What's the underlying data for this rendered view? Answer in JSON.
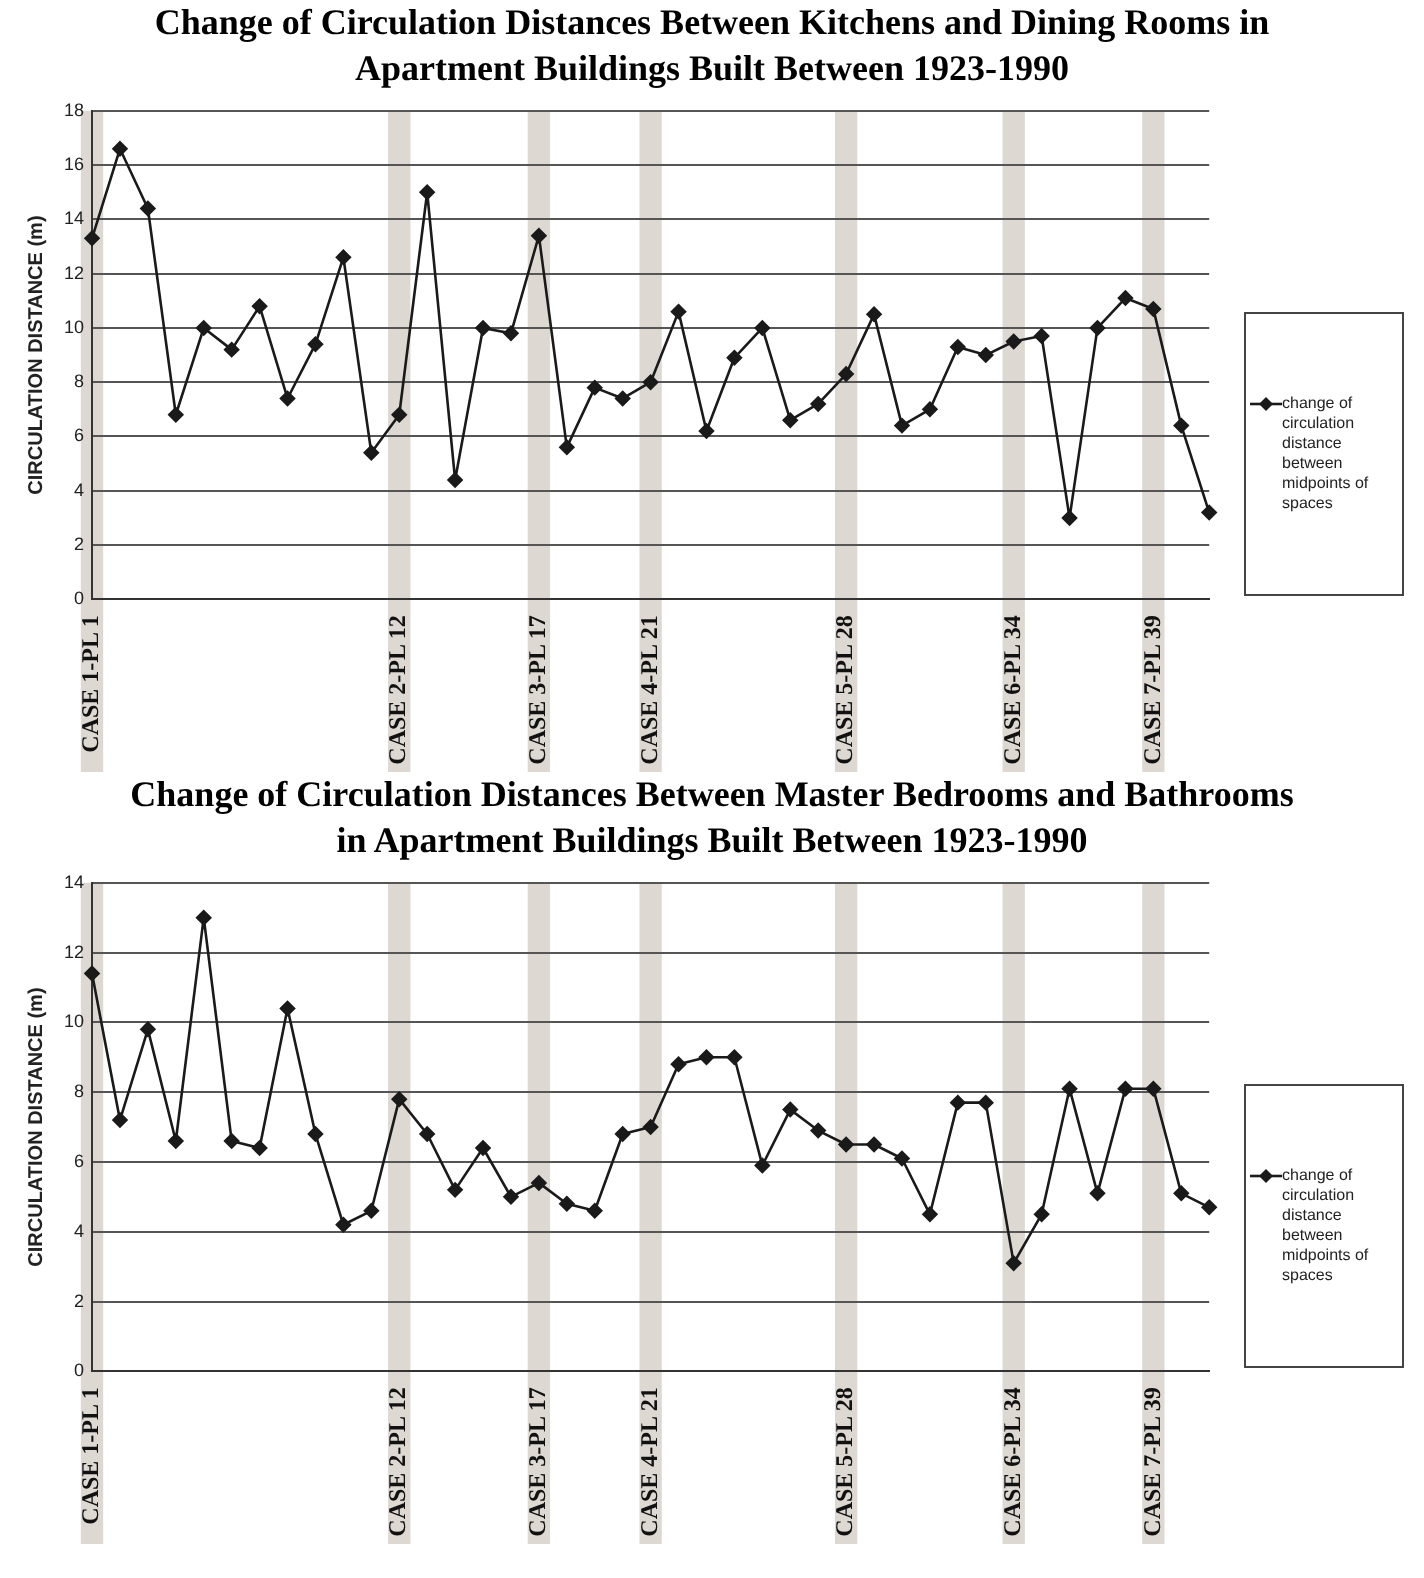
{
  "chart_data": [
    {
      "type": "line",
      "title": "Change of Circulation Distances Between Kitchens and Dining Rooms in Apartment Buildings Built Between 1923-1990",
      "ylabel": "CIRCULATION DISTANCE (m)",
      "categories": [
        "CASE 1-PL 1",
        null,
        null,
        null,
        null,
        null,
        null,
        null,
        null,
        null,
        null,
        "CASE 2-PL 12",
        null,
        null,
        null,
        null,
        "CASE 3-PL 17",
        null,
        null,
        null,
        "CASE 4-PL 21",
        null,
        null,
        null,
        null,
        null,
        null,
        "CASE 5-PL 28",
        null,
        null,
        null,
        null,
        null,
        "CASE 6-PL 34",
        null,
        null,
        null,
        null,
        "CASE 7-PL 39",
        null,
        null
      ],
      "series": [
        {
          "name": "change of circulation distance between midpoints of spaces",
          "color": "#1a1a1a",
          "values": [
            13.3,
            16.6,
            14.4,
            6.8,
            10.0,
            9.2,
            10.8,
            7.4,
            9.4,
            12.6,
            5.4,
            6.8,
            15.0,
            4.4,
            10.0,
            9.8,
            13.4,
            5.6,
            7.8,
            7.4,
            8.0,
            10.6,
            6.2,
            8.9,
            10.0,
            6.6,
            7.2,
            8.3,
            10.5,
            6.4,
            7.0,
            9.3,
            9.0,
            9.5,
            9.7,
            3.0,
            10.0,
            11.1,
            10.7,
            6.4,
            3.2
          ]
        }
      ],
      "ylim": [
        0,
        18
      ],
      "yticks": [
        0,
        2,
        4,
        6,
        8,
        10,
        12,
        14,
        16,
        18
      ],
      "grid": "y",
      "legend": "right",
      "marker": "diamond",
      "line_style": "solid",
      "bands": [
        {
          "axis": "x",
          "from": "CASE 1-PL 1",
          "to": "CASE 1-PL 1",
          "color": "#ddd8d2"
        },
        {
          "axis": "x",
          "from": "CASE 2-PL 12",
          "to": "CASE 2-PL 12",
          "color": "#ddd8d2"
        },
        {
          "axis": "x",
          "from": "CASE 3-PL 17",
          "to": "CASE 3-PL 17",
          "color": "#ddd8d2"
        },
        {
          "axis": "x",
          "from": "CASE 4-PL 21",
          "to": "CASE 4-PL 21",
          "color": "#ddd8d2"
        },
        {
          "axis": "x",
          "from": "CASE 5-PL 28",
          "to": "CASE 5-PL 28",
          "color": "#ddd8d2"
        },
        {
          "axis": "x",
          "from": "CASE 6-PL 34",
          "to": "CASE 6-PL 34",
          "color": "#ddd8d2"
        },
        {
          "axis": "x",
          "from": "CASE 7-PL 39",
          "to": "CASE 7-PL 39",
          "color": "#ddd8d2"
        }
      ]
    },
    {
      "type": "line",
      "title": "Change of Circulation Distances Between Master Bedrooms and Bathrooms in Apartment Buildings Built Between 1923-1990",
      "ylabel": "CIRCULATION DISTANCE (m)",
      "categories": [
        "CASE 1-PL 1",
        null,
        null,
        null,
        null,
        null,
        null,
        null,
        null,
        null,
        null,
        "CASE 2-PL 12",
        null,
        null,
        null,
        null,
        "CASE 3-PL 17",
        null,
        null,
        null,
        "CASE 4-PL 21",
        null,
        null,
        null,
        null,
        null,
        null,
        "CASE 5-PL 28",
        null,
        null,
        null,
        null,
        null,
        "CASE 6-PL 34",
        null,
        null,
        null,
        null,
        "CASE 7-PL 39",
        null,
        null
      ],
      "series": [
        {
          "name": "change of circulation distance between midpoints of spaces",
          "color": "#1a1a1a",
          "values": [
            11.4,
            7.2,
            9.8,
            6.6,
            13.0,
            6.6,
            6.4,
            10.4,
            6.8,
            4.2,
            4.6,
            7.8,
            6.8,
            5.2,
            6.4,
            5.0,
            5.4,
            4.8,
            4.6,
            6.8,
            7.0,
            8.8,
            9.0,
            9.0,
            5.9,
            7.5,
            6.9,
            6.5,
            6.5,
            6.1,
            4.5,
            7.7,
            7.7,
            3.1,
            4.5,
            8.1,
            5.1,
            8.1,
            8.1,
            5.1,
            4.7
          ]
        }
      ],
      "ylim": [
        0,
        14
      ],
      "yticks": [
        0,
        2,
        4,
        6,
        8,
        10,
        12,
        14
      ],
      "grid": "y",
      "legend": "right",
      "marker": "diamond",
      "line_style": "solid",
      "bands": [
        {
          "axis": "x",
          "from": "CASE 1-PL 1",
          "to": "CASE 1-PL 1",
          "color": "#ddd8d2"
        },
        {
          "axis": "x",
          "from": "CASE 2-PL 12",
          "to": "CASE 2-PL 12",
          "color": "#ddd8d2"
        },
        {
          "axis": "x",
          "from": "CASE 3-PL 17",
          "to": "CASE 3-PL 17",
          "color": "#ddd8d2"
        },
        {
          "axis": "x",
          "from": "CASE 4-PL 21",
          "to": "CASE 4-PL 21",
          "color": "#ddd8d2"
        },
        {
          "axis": "x",
          "from": "CASE 5-PL 28",
          "to": "CASE 5-PL 28",
          "color": "#ddd8d2"
        },
        {
          "axis": "x",
          "from": "CASE 6-PL 34",
          "to": "CASE 6-PL 34",
          "color": "#ddd8d2"
        },
        {
          "axis": "x",
          "from": "CASE 7-PL 39",
          "to": "CASE 7-PL 39",
          "color": "#ddd8d2"
        }
      ]
    }
  ]
}
